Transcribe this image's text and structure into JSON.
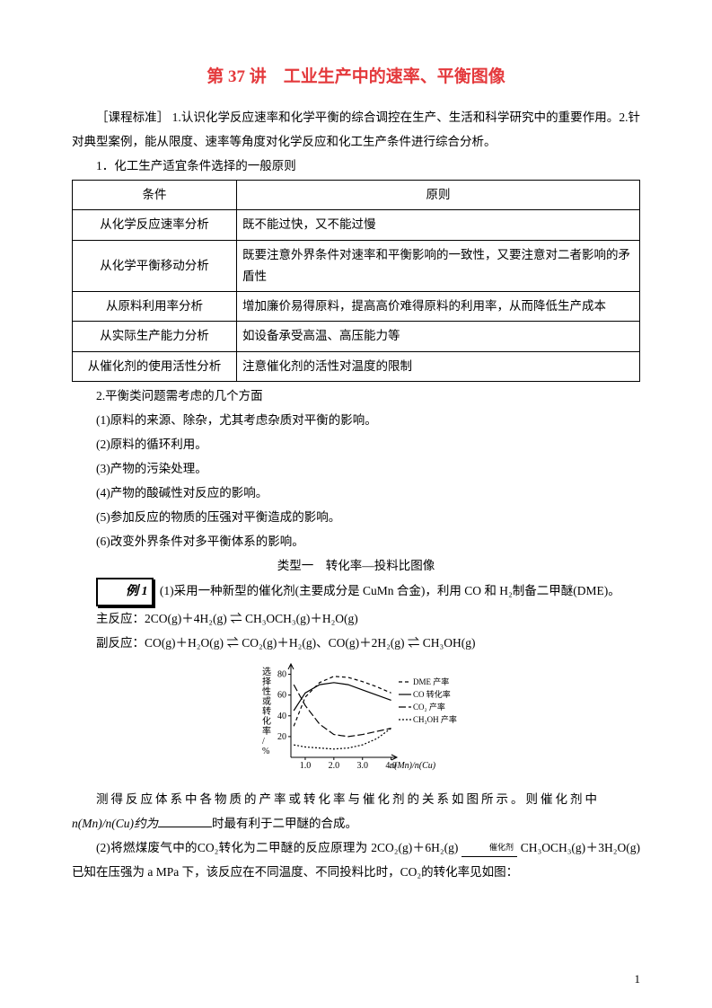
{
  "title": "第 37 讲　工业生产中的速率、平衡图像",
  "standards_label": "［课程标准］",
  "standards_text": "1.认识化学反应速率和化学平衡的综合调控在生产、生活和科学研究中的重要作用。2.针对典型案例，能从限度、速率等角度对化学反应和化工生产条件进行综合分析。",
  "section1_heading": "1．化工生产适宜条件选择的一般原则",
  "table": {
    "header_cond": "条件",
    "header_rule": "原则",
    "rows": [
      {
        "cond": "从化学反应速率分析",
        "rule": "既不能过快，又不能过慢"
      },
      {
        "cond": "从化学平衡移动分析",
        "rule": "既要注意外界条件对速率和平衡影响的一致性，又要注意对二者影响的矛盾性"
      },
      {
        "cond": "从原料利用率分析",
        "rule": "增加廉价易得原料，提高高价难得原料的利用率，从而降低生产成本"
      },
      {
        "cond": "从实际生产能力分析",
        "rule": "如设备承受高温、高压能力等"
      },
      {
        "cond": "从催化剂的使用活性分析",
        "rule": "注意催化剂的活性对温度的限制"
      }
    ]
  },
  "section2_heading": "2.平衡类问题需考虑的几个方面",
  "bullets": [
    "(1)原料的来源、除杂，尤其考虑杂质对平衡的影响。",
    "(2)原料的循环利用。",
    "(3)产物的污染处理。",
    "(4)产物的酸碱性对反应的影响。",
    "(5)参加反应的物质的压强对平衡造成的影响。",
    "(6)改变外界条件对多平衡体系的影响。"
  ],
  "type_heading": "类型一　转化率—投料比图像",
  "example_label": "例 1",
  "ex1_text": "(1)采用一种新型的催化剂(主要成分是 Cu­Mn 合金)，利用 CO 和 H₂制备二甲醚(DME)。",
  "reac_main_label": "主反应：",
  "reac_main": "2CO(g)＋4H₂(g) ⇌ CH₃OCH₃(g)＋H₂O(g)",
  "reac_side_label": "副反应：",
  "reac_side": "CO(g)＋H₂O(g) ⇌ CO₂(g)＋H₂(g)、CO(g)＋2H₂(g) ⇌ CH₃OH(g)",
  "chart": {
    "y_label": "选择性或转化率/%",
    "x_label": "n(Mn)/n(Cu)",
    "x_ticks": [
      "1.0",
      "2.0",
      "3.0",
      "4.0"
    ],
    "y_ticks": [
      "20",
      "40",
      "60",
      "80"
    ],
    "series": [
      {
        "name": "DME 产率",
        "dash": "4,3",
        "points": [
          [
            0.6,
            30
          ],
          [
            1.0,
            58
          ],
          [
            1.5,
            72
          ],
          [
            2.0,
            78
          ],
          [
            2.5,
            77
          ],
          [
            3.0,
            73
          ],
          [
            3.5,
            68
          ],
          [
            4.0,
            62
          ]
        ]
      },
      {
        "name": "CO 转化率",
        "dash": "",
        "points": [
          [
            0.6,
            45
          ],
          [
            1.0,
            62
          ],
          [
            1.5,
            70
          ],
          [
            2.0,
            72
          ],
          [
            2.5,
            70
          ],
          [
            3.0,
            65
          ],
          [
            3.5,
            60
          ],
          [
            4.0,
            55
          ]
        ]
      },
      {
        "name": "CO₂ 产率",
        "dash": "8,3",
        "points": [
          [
            0.6,
            70
          ],
          [
            1.0,
            50
          ],
          [
            1.5,
            32
          ],
          [
            2.0,
            22
          ],
          [
            2.5,
            20
          ],
          [
            3.0,
            22
          ],
          [
            3.5,
            25
          ],
          [
            4.0,
            28
          ]
        ]
      },
      {
        "name": "CH₃OH 产率",
        "dash": "2,2",
        "points": [
          [
            0.6,
            12
          ],
          [
            1.0,
            10
          ],
          [
            1.5,
            9
          ],
          [
            2.0,
            8
          ],
          [
            2.5,
            9
          ],
          [
            3.0,
            12
          ],
          [
            3.5,
            18
          ],
          [
            4.0,
            28
          ]
        ]
      }
    ],
    "legend": [
      "DME 产率",
      "CO 转化率",
      "CO₂ 产率",
      "CH₃OH 产率"
    ],
    "stroke_color": "#000000",
    "background_color": "#ffffff",
    "font_size": 10,
    "axis_font_size": 10
  },
  "ex1_para2_a": "测得反应体系中各物质的产率或转化率与催化剂的关系如图所示。则催化剂中",
  "ex1_para2_b": "n(Mn)/n(Cu)约为",
  "ex1_para2_c": "时最有利于二甲醚的合成。",
  "ex2_a": "(2)将燃煤废气中的CO₂转化为二甲醚的反应原理为 2CO₂(g)＋6H₂(g)",
  "ex2_cat": "催化剂",
  "ex2_b": "CH₃OCH₃(g)＋3H₂O(g) 已知在压强为 a MPa 下，该反应在不同温度、不同投料比时，CO₂的转化率见如图：",
  "page_number": "1"
}
